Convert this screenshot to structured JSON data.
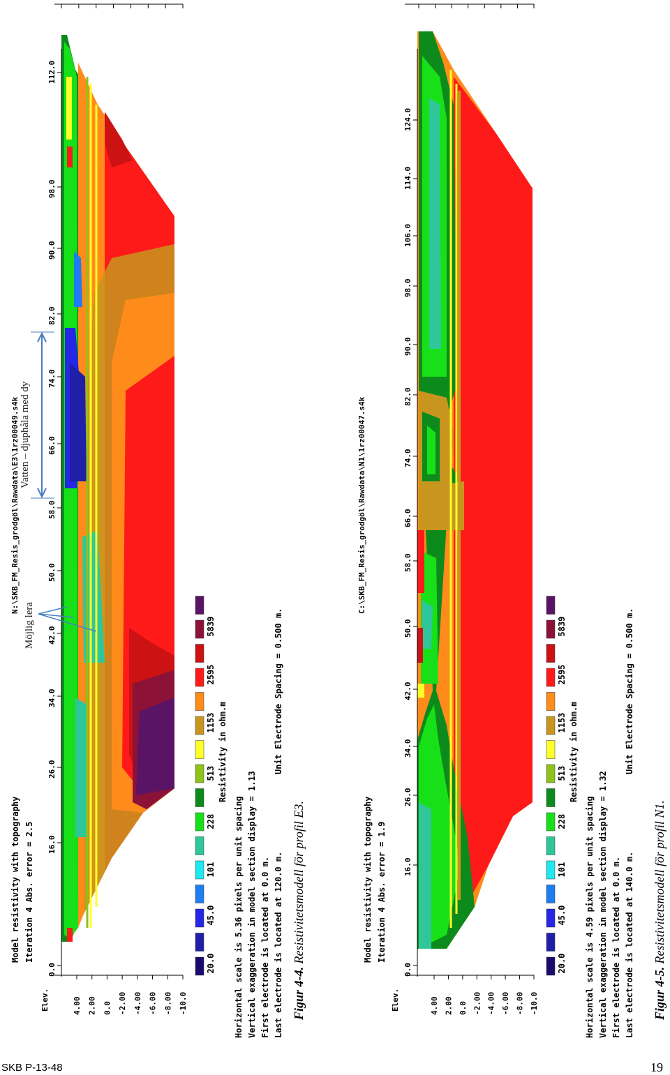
{
  "figures": [
    {
      "caption_label": "Figur 4-4.",
      "caption_text": "Resistivitetsmodell för profil E3.",
      "file_path": "N:\\SKB_FM_Resis_grodgöl\\Rawdata\\E3\\1rz00049.s4k",
      "info_lines": [
        "Model resistivity with topography",
        "Iteration 4 Abs. error = 2.5"
      ],
      "scale_lines": [
        "Horizontal scale is 5.36 pixels per unit spacing",
        "Vertical exaggeration in model section display = 1.13",
        "First electrode is located at 0.0 m.",
        "Last electrode is located at 120.0 m."
      ],
      "spacing": "Unit Electrode Spacing = 0.500 m.",
      "distance_ticks": [
        "0.0",
        "16.0",
        "26.0",
        "34.0",
        "42.0",
        "50.0",
        "58.0",
        "66.0",
        "74.0",
        "82.0",
        "90.0",
        "98.0",
        "112.0"
      ],
      "elevation_title": "Elev.",
      "elevation_ticks": [
        "4.00",
        "2.00",
        "0.0",
        "-2.00",
        "-4.00",
        "-6.00",
        "-8.00",
        "-10.0"
      ],
      "annotations": [
        "Vatten – djuphåla med dy",
        "Möjlig lera"
      ]
    },
    {
      "caption_label": "Figur 4-5.",
      "caption_text": "Resistivitetsmodell för profil N1.",
      "file_path": "C:\\SKB_FM_Resis_grodgöl\\Rawdata\\N1\\1rz00047.s4k",
      "info_lines": [
        "Model resistivity with topography",
        "Iteration 4 Abs. error = 1.9"
      ],
      "scale_lines": [
        "Horizontal scale is 4.59 pixels per unit spacing",
        "Vertical exaggeration in model section display = 1.32",
        "First electrode is located at 0.0 m.",
        "Last electrode is located at 140.0 m."
      ],
      "spacing": "Unit Electrode Spacing = 0.500 m.",
      "distance_ticks": [
        "0.0",
        "16.0",
        "26.0",
        "34.0",
        "42.0",
        "50.0",
        "58.0",
        "66.0",
        "74.0",
        "82.0",
        "90.0",
        "98.0",
        "106.0",
        "114.0",
        "124.0"
      ],
      "elevation_title": "Elev.",
      "elevation_ticks": [
        "4.00",
        "2.00",
        "0.0",
        "-2.00",
        "-4.00",
        "-6.00",
        "-8.00",
        "-10.0"
      ],
      "annotations": []
    }
  ],
  "legend": {
    "title": "Resistivity in ohm.m",
    "values": [
      "20.0",
      "45.0",
      "101",
      "228",
      "513",
      "1153",
      "2595",
      "5839"
    ],
    "colors": [
      "#1a0a6e",
      "#1f1fa8",
      "#2626e6",
      "#1e7df0",
      "#20e8f0",
      "#2fc79a",
      "#18e018",
      "#0d8a1c",
      "#8fc21a",
      "#ffff2a",
      "#c8961e",
      "#ff8c1a",
      "#ff1a1a",
      "#cc1212",
      "#8c1238",
      "#5a1466"
    ]
  },
  "footer": {
    "left": "SKB P-13-48",
    "right": "19"
  }
}
